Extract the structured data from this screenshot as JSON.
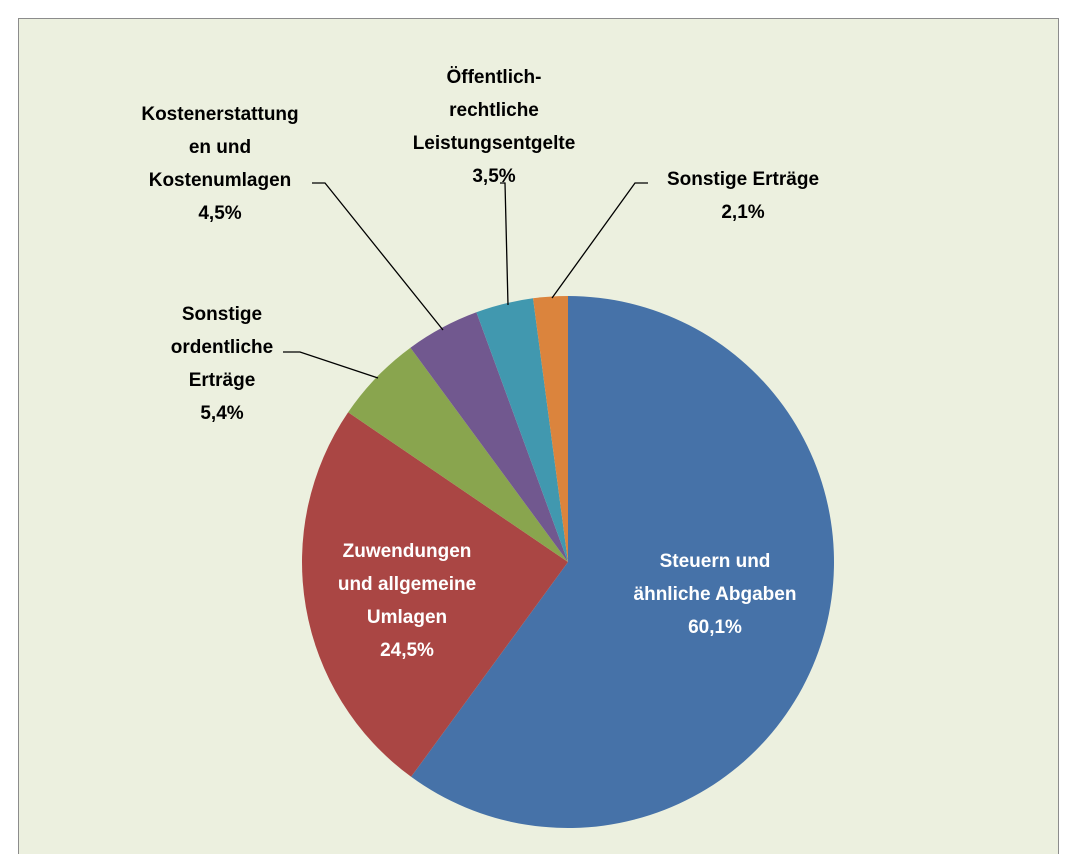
{
  "chart_data": {
    "type": "pie",
    "categories": [
      "Steuern und\nähnliche Abgaben",
      "Zuwendungen\nund allgemeine\nUmlagen",
      "Sonstige\nordentliche\nErträge",
      "Kostenerstattung\nen und\nKostenumlagen",
      "Öffentlich-\nrechtliche\nLeistungsentgelte",
      "Sonstige Erträge"
    ],
    "values": [
      60.1,
      24.5,
      5.4,
      4.5,
      3.5,
      2.1
    ],
    "value_labels": [
      "60,1%",
      "24,5%",
      "5,4%",
      "4,5%",
      "3,5%",
      "2,1%"
    ],
    "colors": [
      "#4672a8",
      "#aa4644",
      "#89a54e",
      "#71588f",
      "#4198af",
      "#db843d"
    ]
  }
}
